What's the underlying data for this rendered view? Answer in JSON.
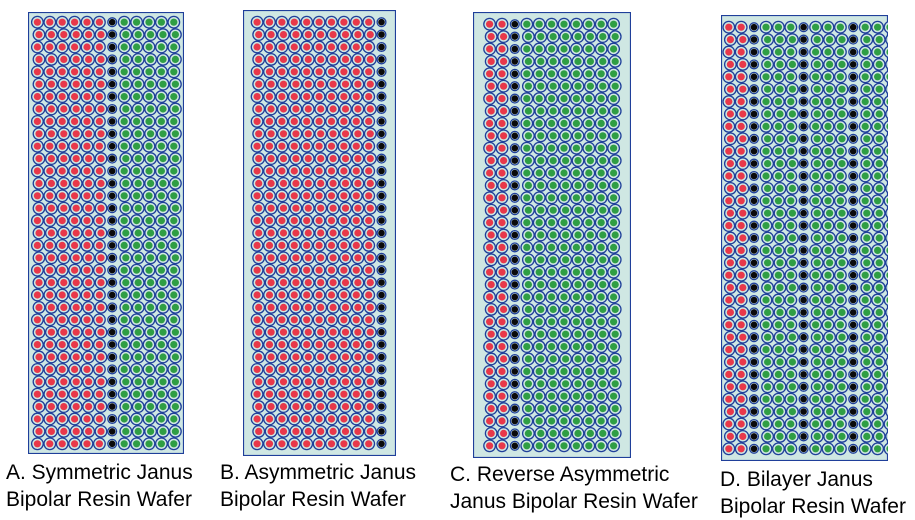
{
  "colors": {
    "wafer_background": "#cfe7e3",
    "bead_outline": "#1f3f9a",
    "cation_bead": "#e8384a",
    "anion_bead": "#2f9e44",
    "bipolar_junction_bead": "#0a0a0a"
  },
  "panels": [
    {
      "caption_line1": "A. Symmetric Janus",
      "caption_line2": "Bipolar Resin Wafer",
      "layers": [
        "cation",
        "junction",
        "anion"
      ]
    },
    {
      "caption_line1": "B. Asymmetric Janus",
      "caption_line2": "Bipolar Resin Wafer",
      "layers": [
        "cation",
        "junction"
      ]
    },
    {
      "caption_line1": "C. Reverse Asymmetric",
      "caption_line2": "Janus Bipolar Resin Wafer",
      "layers": [
        "cation",
        "junction",
        "anion"
      ]
    },
    {
      "caption_line1": "D. Bilayer Janus",
      "caption_line2": "Bipolar Resin Wafer",
      "layers": [
        "cation",
        "junction",
        "anion",
        "junction",
        "anion",
        "junction",
        "anion"
      ]
    }
  ]
}
